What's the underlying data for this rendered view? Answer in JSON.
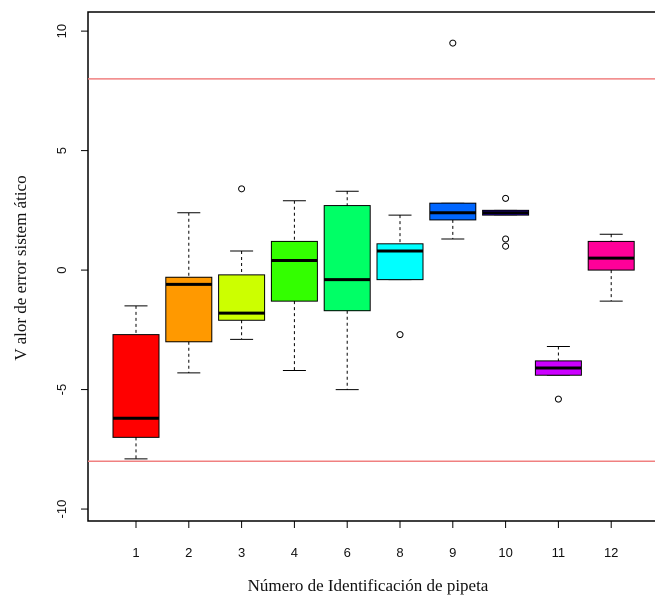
{
  "chart_data": {
    "type": "boxplot",
    "xlabel": "Número de Identificación de pipeta",
    "ylabel": "V alor de error sistem ático",
    "ylim": [
      -10.5,
      10.8
    ],
    "yticks": [
      10,
      5,
      0,
      -5,
      -10
    ],
    "ytick_labels": [
      "10",
      "5",
      "0",
      "-5",
      "-10"
    ],
    "reference_lines": [
      8,
      -8
    ],
    "reference_line_color": "#f08080",
    "categories": [
      "1",
      "2",
      "3",
      "4",
      "6",
      "8",
      "9",
      "10",
      "11",
      "12"
    ],
    "boxes": [
      {
        "label": "1",
        "color": "#ff0000",
        "whisker_low": -7.9,
        "q1": -7.0,
        "median": -6.2,
        "q3": -2.7,
        "whisker_high": -1.5,
        "outliers": []
      },
      {
        "label": "2",
        "color": "#ff9900",
        "whisker_low": -4.3,
        "q1": -3.0,
        "median": -0.6,
        "q3": -0.3,
        "whisker_high": 2.4,
        "outliers": []
      },
      {
        "label": "3",
        "color": "#ccff00",
        "whisker_low": -2.9,
        "q1": -2.1,
        "median": -1.8,
        "q3": -0.2,
        "whisker_high": 0.8,
        "outliers": [
          3.4
        ]
      },
      {
        "label": "4",
        "color": "#33ff00",
        "whisker_low": -4.2,
        "q1": -1.3,
        "median": 0.4,
        "q3": 1.2,
        "whisker_high": 2.9,
        "outliers": []
      },
      {
        "label": "6",
        "color": "#00ff66",
        "whisker_low": -5.0,
        "q1": -1.7,
        "median": -0.4,
        "q3": 2.7,
        "whisker_high": 3.3,
        "outliers": []
      },
      {
        "label": "8",
        "color": "#00ffff",
        "whisker_low": -0.4,
        "q1": -0.4,
        "median": 0.8,
        "q3": 1.1,
        "whisker_high": 2.3,
        "outliers": [
          -2.7
        ]
      },
      {
        "label": "9",
        "color": "#0066ff",
        "whisker_low": 1.3,
        "q1": 2.1,
        "median": 2.4,
        "q3": 2.8,
        "whisker_high": 2.8,
        "outliers": [
          9.5
        ]
      },
      {
        "label": "10",
        "color": "#3300ff",
        "whisker_low": 2.3,
        "q1": 2.3,
        "median": 2.4,
        "q3": 2.5,
        "whisker_high": 2.5,
        "outliers": [
          1.0,
          1.3,
          3.0
        ]
      },
      {
        "label": "11",
        "color": "#cc00ff",
        "whisker_low": -4.4,
        "q1": -4.4,
        "median": -4.1,
        "q3": -3.8,
        "whisker_high": -3.2,
        "outliers": [
          -5.4
        ]
      },
      {
        "label": "12",
        "color": "#ff0099",
        "whisker_low": -1.3,
        "q1": 0.0,
        "median": 0.5,
        "q3": 1.2,
        "whisker_high": 1.5,
        "outliers": []
      }
    ]
  }
}
